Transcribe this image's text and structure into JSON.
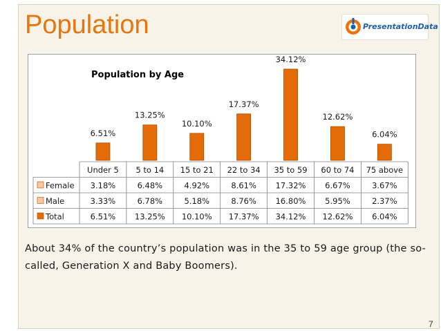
{
  "slide": {
    "title": "Population",
    "caption": "About 34% of the country’s population was in the 35 to 59 age group (the so-called, Generation X and Baby Boomers).",
    "page_number": "7",
    "logo_text": "PresentationData"
  },
  "colors": {
    "accent": "#e8760e",
    "bar": "#e36c09",
    "bar_edge": "#a84f06",
    "background": "#f7f3e8"
  },
  "chart_data": {
    "type": "bar",
    "title": "Population by Age",
    "categories": [
      "Under 5",
      "5 to 14",
      "15 to 21",
      "22 to 34",
      "35 to 59",
      "60 to 74",
      "75 above"
    ],
    "values": [
      6.51,
      13.25,
      10.1,
      17.37,
      34.12,
      12.62,
      6.04
    ],
    "data_labels": [
      "6.51%",
      "13.25%",
      "10.10%",
      "17.37%",
      "34.12%",
      "12.62%",
      "6.04%"
    ],
    "ylim": [
      0,
      34.12
    ],
    "grid": false,
    "data_table": {
      "rows": [
        {
          "name": "Female",
          "legend_color": "#f9c89b",
          "values": [
            "3.18%",
            "6.48%",
            "4.92%",
            "8.61%",
            "17.32%",
            "6.67%",
            "3.67%"
          ]
        },
        {
          "name": "Male",
          "legend_color": "#f9c89b",
          "values": [
            "3.33%",
            "6.78%",
            "5.18%",
            "8.76%",
            "16.80%",
            "5.95%",
            "2.37%"
          ]
        },
        {
          "name": "Total",
          "legend_color": "#e36c09",
          "values": [
            "6.51%",
            "13.25%",
            "10.10%",
            "17.37%",
            "34.12%",
            "12.62%",
            "6.04%"
          ]
        }
      ]
    }
  }
}
